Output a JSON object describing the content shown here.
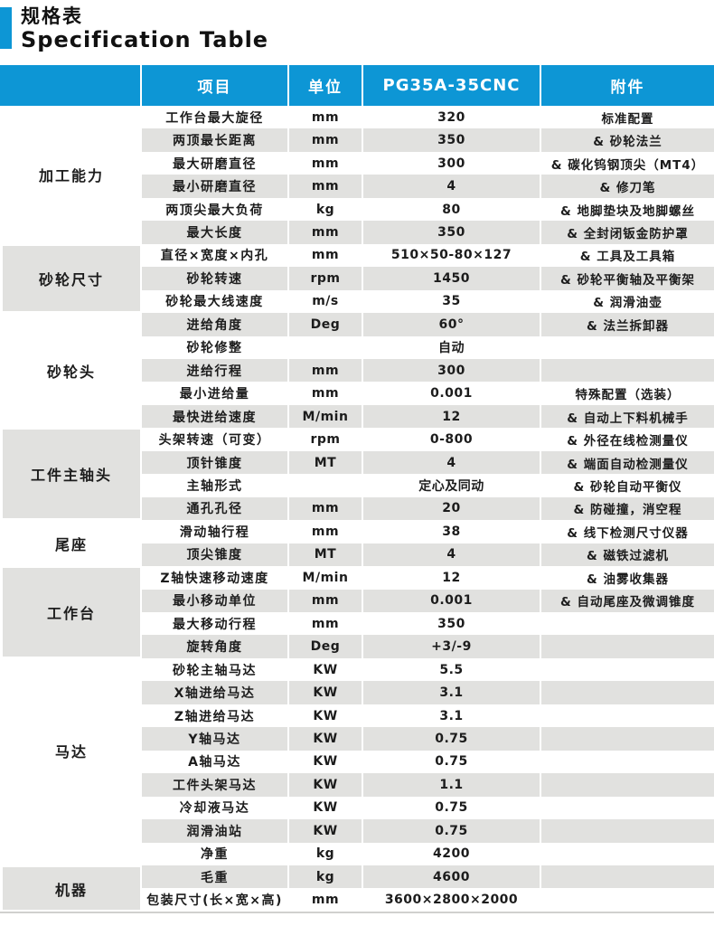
{
  "page_title": {
    "zh": "规格表",
    "en": "Specification Table"
  },
  "colors": {
    "accent_blue": "#0d96d5",
    "stripe_gray": "#e1e1df",
    "header_text": "#ffffff",
    "text": "#1c1c1c"
  },
  "table": {
    "column_headers": [
      "项目",
      "单位",
      "PG35A-35CNC",
      "附件"
    ],
    "sections": [
      {
        "name": "加工能力",
        "shaded": false,
        "rows": [
          [
            "工作台最大旋径",
            "mm",
            "320",
            "标准配置"
          ],
          [
            "两顶最长距离",
            "mm",
            "350",
            "& 砂轮法兰"
          ],
          [
            "最大研磨直径",
            "mm",
            "300",
            "& 碳化钨钢顶尖（MT4）"
          ],
          [
            "最小研磨直径",
            "mm",
            "4",
            "& 修刀笔"
          ],
          [
            "两顶尖最大负荷",
            "kg",
            "80",
            "& 地脚垫块及地脚螺丝"
          ],
          [
            "最大长度",
            "mm",
            "350",
            "& 全封闭钣金防护罩"
          ]
        ]
      },
      {
        "name": "砂轮尺寸",
        "shaded": true,
        "rows": [
          [
            "直径×宽度×内孔",
            "mm",
            "510×50-80×127",
            "& 工具及工具箱"
          ],
          [
            "砂轮转速",
            "rpm",
            "1450",
            "& 砂轮平衡轴及平衡架"
          ],
          [
            "砂轮最大线速度",
            "m/s",
            "35",
            "& 润滑油壶"
          ]
        ]
      },
      {
        "name": "砂轮头",
        "shaded": false,
        "rows": [
          [
            "进给角度",
            "Deg",
            "60°",
            "& 法兰拆卸器"
          ],
          [
            "砂轮修整",
            "",
            "自动",
            ""
          ],
          [
            "进给行程",
            "mm",
            "300",
            ""
          ],
          [
            "最小进给量",
            "mm",
            "0.001",
            "特殊配置（选装）"
          ],
          [
            "最快进给速度",
            "M/min",
            "12",
            "& 自动上下料机械手"
          ]
        ]
      },
      {
        "name": "工件主轴头",
        "shaded": true,
        "rows": [
          [
            "头架转速（可变）",
            "rpm",
            "0-800",
            "& 外径在线检测量仪"
          ],
          [
            "顶针锥度",
            "MT",
            "4",
            "& 端面自动检测量仪"
          ],
          [
            "主轴形式",
            "",
            "定心及同动",
            "& 砂轮自动平衡仪"
          ],
          [
            "通孔孔径",
            "mm",
            "20",
            "& 防碰撞，消空程"
          ]
        ]
      },
      {
        "name": "尾座",
        "shaded": false,
        "rows": [
          [
            "滑动轴行程",
            "mm",
            "38",
            "& 线下检测尺寸仪器"
          ],
          [
            "顶尖锥度",
            "MT",
            "4",
            "& 磁铁过滤机"
          ]
        ]
      },
      {
        "name": "工作台",
        "shaded": true,
        "rows": [
          [
            "Z轴快速移动速度",
            "M/min",
            "12",
            "& 油雾收集器"
          ],
          [
            "最小移动单位",
            "mm",
            "0.001",
            "& 自动尾座及微调锥度"
          ],
          [
            "最大移动行程",
            "mm",
            "350",
            ""
          ],
          [
            "旋转角度",
            "Deg",
            "+3/-9",
            ""
          ]
        ]
      },
      {
        "name": "马达",
        "shaded": false,
        "rows": [
          [
            "砂轮主轴马达",
            "KW",
            "5.5",
            ""
          ],
          [
            "X轴进给马达",
            "KW",
            "3.1",
            ""
          ],
          [
            "Z轴进给马达",
            "KW",
            "3.1",
            ""
          ],
          [
            "Y轴马达",
            "KW",
            "0.75",
            ""
          ],
          [
            "A轴马达",
            "KW",
            "0.75",
            ""
          ],
          [
            "工件头架马达",
            "KW",
            "1.1",
            ""
          ],
          [
            "冷却液马达",
            "KW",
            "0.75",
            ""
          ],
          [
            "润滑油站",
            "KW",
            "0.75",
            ""
          ]
        ]
      },
      {
        "name": "机器",
        "shaded": true,
        "box_skip_rows": 1,
        "rows": [
          [
            "净重",
            "kg",
            "4200",
            ""
          ],
          [
            "毛重",
            "kg",
            "4600",
            ""
          ],
          [
            "包装尺寸(长×宽×高)",
            "mm",
            "3600×2800×2000",
            ""
          ]
        ]
      }
    ]
  }
}
